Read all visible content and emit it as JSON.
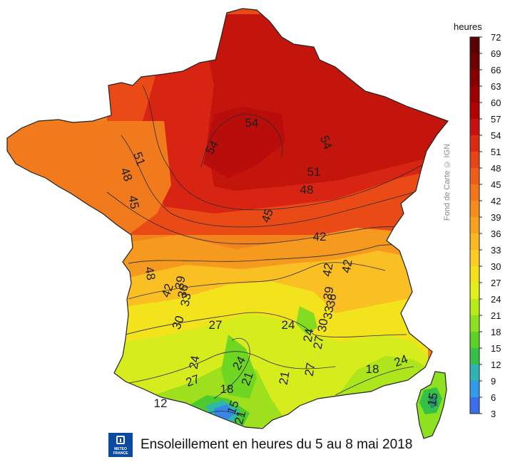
{
  "map": {
    "title": "Ensoleillement en heures du 5 au 8 mai 2018",
    "credit": "Fond de Carte © IGN",
    "logo": {
      "line1": "METEO",
      "line2": "FRANCE"
    },
    "legend": {
      "unit": "heures",
      "ticks": [
        "72",
        "69",
        "66",
        "63",
        "60",
        "57",
        "54",
        "51",
        "48",
        "45",
        "42",
        "39",
        "36",
        "33",
        "30",
        "27",
        "24",
        "21",
        "18",
        "15",
        "12",
        "9",
        "6",
        "3"
      ],
      "colors": [
        "#5a0000",
        "#6f0000",
        "#860000",
        "#9c0000",
        "#b00000",
        "#c81010",
        "#dc2a12",
        "#ea4416",
        "#f05d18",
        "#f4741a",
        "#f78b1c",
        "#f9a21e",
        "#fbb823",
        "#fdcd24",
        "#f4e11b",
        "#dff01b",
        "#b8ea1c",
        "#8ee11e",
        "#5cd324",
        "#33c247",
        "#2fb3b4",
        "#3399e9",
        "#3a6fee",
        "#3b3fe6"
      ]
    },
    "contour_labels": [
      "54",
      "54",
      "54",
      "51",
      "48",
      "45",
      "51",
      "48",
      "45",
      "42",
      "42",
      "42",
      "48",
      "42",
      "39",
      "36",
      "33",
      "30",
      "39",
      "36",
      "33",
      "30",
      "27",
      "24",
      "24",
      "27",
      "24",
      "27",
      "24",
      "18",
      "21",
      "21",
      "27",
      "18",
      "15",
      "12",
      "21",
      "24",
      "15"
    ],
    "colors": {
      "north": "#c4150c",
      "bretagne": "#f07a1c",
      "centre": "#f7ac1f",
      "south": "#dbec1c",
      "pyrenees": "#59d126"
    }
  }
}
